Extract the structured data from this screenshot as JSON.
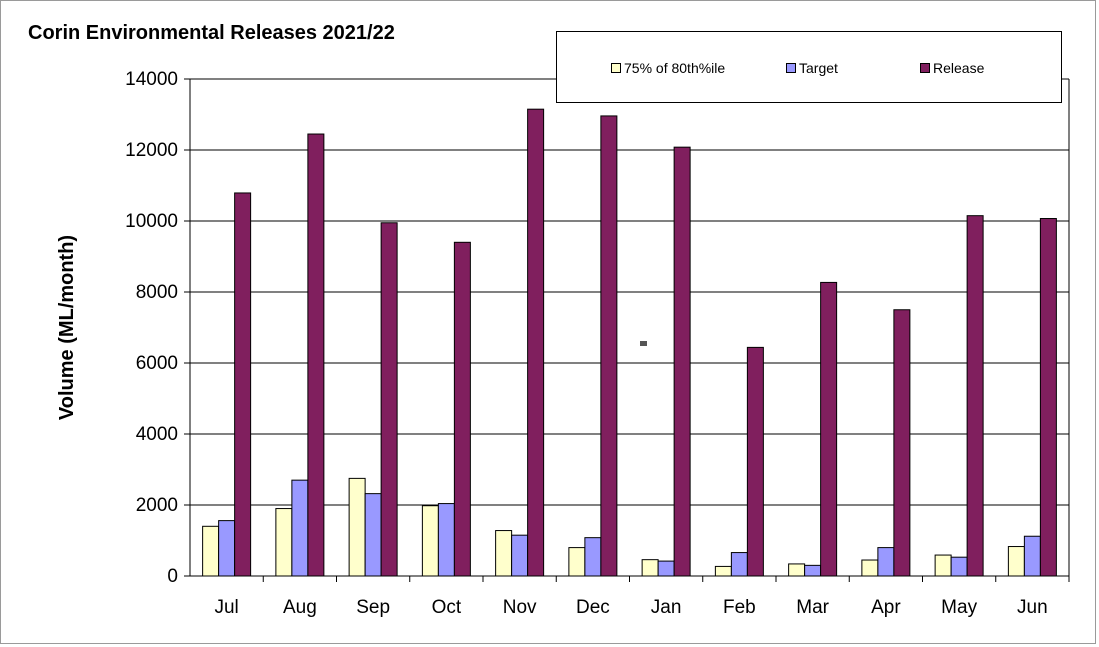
{
  "chart_data": {
    "type": "bar",
    "title": "Corin Environmental Releases 2021/22",
    "xlabel": "",
    "ylabel": "Volume (ML/month)",
    "ylim": [
      0,
      14000
    ],
    "yticks": [
      "0",
      "2000",
      "4000",
      "6000",
      "8000",
      "10000",
      "12000",
      "14000"
    ],
    "categories": [
      "Jul",
      "Aug",
      "Sep",
      "Oct",
      "Nov",
      "Dec",
      "Jan",
      "Feb",
      "Mar",
      "Apr",
      "May",
      "Jun"
    ],
    "grid": true,
    "legend_position": "top-right",
    "series": [
      {
        "name": "75% of 80th%ile",
        "color": "#ffffcc",
        "values": [
          1400,
          1900,
          2750,
          1980,
          1280,
          800,
          460,
          270,
          340,
          450,
          590,
          830
        ]
      },
      {
        "name": "Target",
        "color": "#9999ff",
        "values": [
          1560,
          2700,
          2320,
          2040,
          1150,
          1080,
          420,
          660,
          300,
          800,
          530,
          1120
        ]
      },
      {
        "name": "Release",
        "color": "#801f5e",
        "values": [
          10790,
          12450,
          9950,
          9400,
          13150,
          12960,
          12080,
          6440,
          8270,
          7500,
          10150,
          10070
        ]
      }
    ]
  }
}
